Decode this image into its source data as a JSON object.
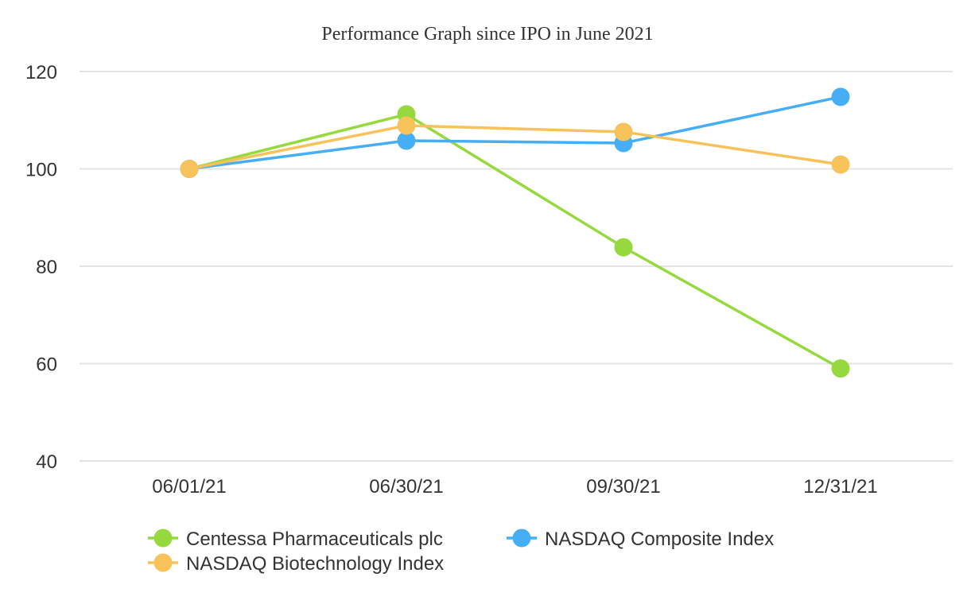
{
  "chart_data": {
    "type": "line",
    "title": "Performance Graph since IPO in June 2021",
    "xlabel": "",
    "ylabel": "",
    "categories": [
      "06/01/21",
      "06/30/21",
      "09/30/21",
      "12/31/21"
    ],
    "ylim": [
      40,
      120
    ],
    "yticks": [
      40,
      60,
      80,
      100,
      120
    ],
    "grid": true,
    "legend_position": "bottom",
    "series": [
      {
        "name": "Centessa Pharmaceuticals plc",
        "color": "#96d93f",
        "values": [
          100,
          111.2,
          83.9,
          59.0
        ]
      },
      {
        "name": "NASDAQ Composite Index",
        "color": "#46aef5",
        "values": [
          100,
          105.8,
          105.3,
          114.8
        ]
      },
      {
        "name": "NASDAQ Biotechnology Index",
        "color": "#f8c25a",
        "values": [
          100,
          108.9,
          107.6,
          100.9
        ]
      }
    ]
  }
}
